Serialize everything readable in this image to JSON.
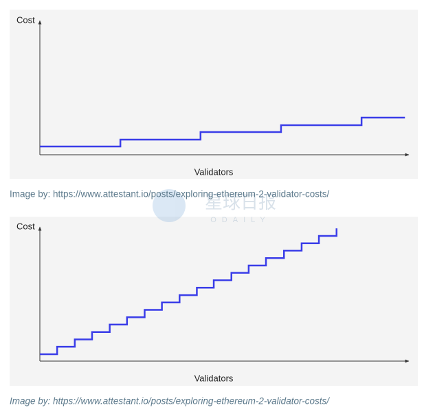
{
  "chart_data": [
    {
      "type": "line",
      "step": "post",
      "ylabel": "Cost",
      "xlabel": "Validators",
      "color": "#3a3de8",
      "xlim": [
        0,
        100
      ],
      "ylim": [
        0,
        100
      ],
      "x": [
        0,
        21.9,
        43.7,
        65.6,
        87.5,
        99.3
      ],
      "values": [
        6.2,
        11.4,
        17.1,
        22.3,
        28.0,
        28.0
      ]
    },
    {
      "type": "line",
      "step": "post",
      "ylabel": "Cost",
      "xlabel": "Validators",
      "color": "#3a3de8",
      "xlim": [
        0,
        100
      ],
      "ylim": [
        0,
        100
      ],
      "x": [
        0,
        4.7,
        9.5,
        14.2,
        19.0,
        23.7,
        28.5,
        33.2,
        38.0,
        42.7,
        47.3,
        52.1,
        56.8,
        61.5,
        66.4,
        71.2,
        75.9,
        80.7
      ],
      "values": [
        5.2,
        10.8,
        16.3,
        21.9,
        27.5,
        33.0,
        38.6,
        44.2,
        49.7,
        55.3,
        60.9,
        66.5,
        72.0,
        77.6,
        83.2,
        88.7,
        94.3,
        100
      ]
    }
  ],
  "captions": [
    "Image by: https://www.attestant.io/posts/exploring-ethereum-2-validator-costs/",
    "Image by: https://www.attestant.io/posts/exploring-ethereum-2-validator-costs/"
  ],
  "watermark": {
    "title": "星球日报",
    "subtitle": "ODAILY"
  }
}
